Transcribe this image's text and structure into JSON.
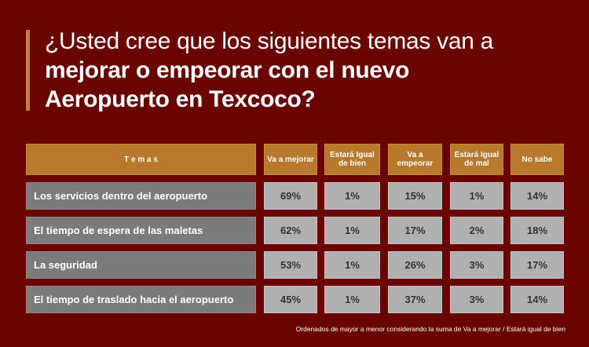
{
  "title": {
    "line1": "¿Usted cree que los siguientes temas van a",
    "line2": "mejorar o empeorar con el nuevo",
    "line3": "Aeropuerto en Texcoco?"
  },
  "headers": [
    "T e m a s",
    "Va a mejorar",
    "Estará Igual de bien",
    "Va a empeorar",
    "Estará Igual de mal",
    "No sabe"
  ],
  "rows": [
    {
      "tema": "Los servicios dentro del aeropuerto",
      "values": [
        "69%",
        "1%",
        "15%",
        "1%",
        "14%"
      ]
    },
    {
      "tema": "El tiempo de espera de las maletas",
      "values": [
        "62%",
        "1%",
        "17%",
        "2%",
        "18%"
      ]
    },
    {
      "tema": "La seguridad",
      "values": [
        "53%",
        "1%",
        "26%",
        "3%",
        "17%"
      ]
    },
    {
      "tema": "El tiempo de traslado hacia el aeropuerto",
      "values": [
        "45%",
        "1%",
        "37%",
        "3%",
        "14%"
      ]
    }
  ],
  "note": "Ordenados de mayor a menor considerando la suma de Va a mejorar / Estará igual de bien",
  "colors": {
    "background": "#6a0400",
    "header": "#b8792c",
    "label": "#7b7b7b",
    "value": "#b0b0b0"
  }
}
